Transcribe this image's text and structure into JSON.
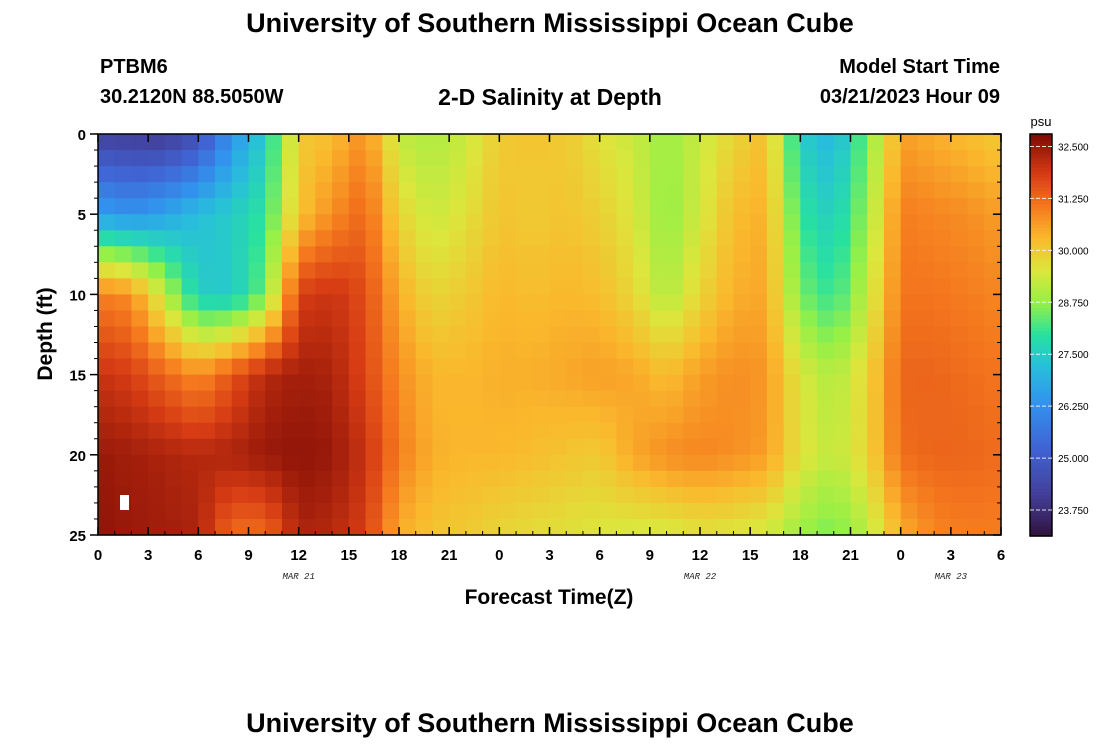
{
  "header": {
    "main_title": "University of Southern Mississippi Ocean Cube",
    "station_id": "PTBM6",
    "station_coords": "30.2120N  88.5050W",
    "chart_title": "2-D Salinity at Depth",
    "model_start_label": "Model Start Time",
    "model_start_value": "03/21/2023 Hour 09"
  },
  "footer": {
    "bottom_title": "University of Southern Mississippi Ocean Cube"
  },
  "chart_data": {
    "type": "heatmap",
    "title": "2-D Salinity at Depth",
    "xlabel": "Forecast Time(Z)",
    "ylabel": "Depth (ft)",
    "x_tick_labels": [
      "0",
      "3",
      "6",
      "9",
      "12",
      "15",
      "18",
      "21",
      "0",
      "3",
      "6",
      "9",
      "12",
      "15",
      "18",
      "21",
      "0",
      "3",
      "6"
    ],
    "x_date_labels": [
      {
        "label": "MAR 21",
        "at_tick": 4
      },
      {
        "label": "MAR 22",
        "at_tick": 12
      },
      {
        "label": "MAR 23",
        "at_tick": 17
      }
    ],
    "x_range_hours": [
      0,
      54
    ],
    "y_ticks": [
      0,
      5,
      10,
      15,
      20,
      25
    ],
    "y_range_ft": [
      0,
      25
    ],
    "y_reversed": true,
    "colorbar": {
      "unit": "psu",
      "range": [
        23.125,
        32.8
      ],
      "tick_values": [
        32.5,
        31.25,
        30.0,
        28.75,
        27.5,
        26.25,
        25.0,
        23.75
      ],
      "tick_labels": [
        "32.500",
        "31.250",
        "30.000",
        "28.750",
        "27.500",
        "26.250",
        "25.000",
        "23.750"
      ]
    },
    "grid_resolution": {
      "time_steps": 54,
      "depth_steps": 25
    },
    "salinity_psu_estimated": {
      "times_hours": [
        0,
        2,
        4,
        6,
        8,
        10,
        12,
        14,
        16,
        18,
        20,
        22,
        24,
        26,
        28,
        30,
        32,
        34,
        36,
        38,
        40,
        42,
        44,
        46,
        48,
        50,
        52,
        54
      ],
      "depths_ft": [
        0,
        5,
        10,
        15,
        20,
        25
      ],
      "rows": [
        [
          24.2,
          24.1,
          24.0,
          24.6,
          26.3,
          27.5,
          30.0,
          30.2,
          30.8,
          29.2,
          29.0,
          29.3,
          30.0,
          30.1,
          30.0,
          29.6,
          29.3,
          28.8,
          29.3,
          29.8,
          30.2,
          27.5,
          27.0,
          28.5,
          30.6,
          30.4,
          30.2,
          30.0
        ],
        [
          26.6,
          26.3,
          26.7,
          27.2,
          27.5,
          28.0,
          30.1,
          30.8,
          31.3,
          29.8,
          29.3,
          29.6,
          30.1,
          30.0,
          30.1,
          29.9,
          29.5,
          28.7,
          29.4,
          30.2,
          30.4,
          28.0,
          27.5,
          28.8,
          31.0,
          30.9,
          30.8,
          30.6
        ],
        [
          31.0,
          30.8,
          29.2,
          27.5,
          27.4,
          28.5,
          31.8,
          32.0,
          31.6,
          30.4,
          29.8,
          30.0,
          30.3,
          30.2,
          30.3,
          30.2,
          29.8,
          29.0,
          29.8,
          30.4,
          30.5,
          28.5,
          28.0,
          29.2,
          31.1,
          31.1,
          31.0,
          30.9
        ],
        [
          32.0,
          31.8,
          31.3,
          30.8,
          31.5,
          32.2,
          32.4,
          32.3,
          31.7,
          30.8,
          30.3,
          30.3,
          30.4,
          30.4,
          30.5,
          30.6,
          30.5,
          30.2,
          30.6,
          30.8,
          30.7,
          29.5,
          29.0,
          29.8,
          31.3,
          31.3,
          31.2,
          31.1
        ],
        [
          32.5,
          32.4,
          32.3,
          32.2,
          32.3,
          32.5,
          32.6,
          32.5,
          32.0,
          31.0,
          30.4,
          30.3,
          30.3,
          30.2,
          30.1,
          30.0,
          30.5,
          30.8,
          30.9,
          30.8,
          30.6,
          29.6,
          29.2,
          29.8,
          31.2,
          31.3,
          31.3,
          31.2
        ],
        [
          32.6,
          32.5,
          32.4,
          32.3,
          31.2,
          31.2,
          32.3,
          32.2,
          31.8,
          30.4,
          30.1,
          30.0,
          29.8,
          29.7,
          29.6,
          29.5,
          29.4,
          29.4,
          29.6,
          29.5,
          29.4,
          28.8,
          28.5,
          29.1,
          30.4,
          30.9,
          31.0,
          31.0
        ]
      ]
    }
  }
}
